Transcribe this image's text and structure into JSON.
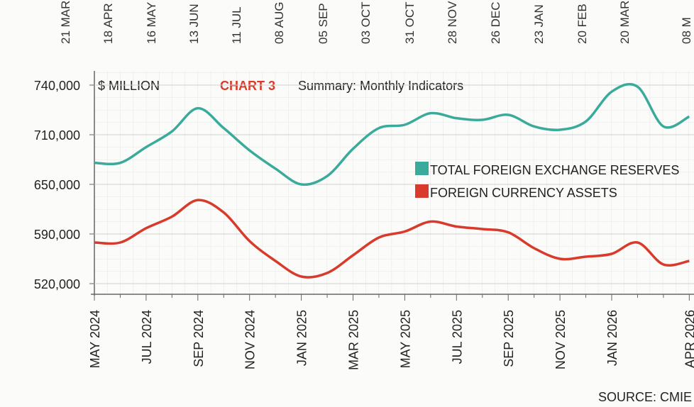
{
  "top_labels": [
    "21 MAR",
    "18 APR",
    "16 MAY",
    "13 JUN",
    "11 JUL",
    "08 AUG",
    "05 SEP",
    "03 OCT",
    "31 OCT",
    "28 NOV",
    "26 DEC",
    "23 JAN",
    "20 FEB",
    "20 MAR",
    "08 M"
  ],
  "chart_data": {
    "type": "line",
    "title_prefix": "CHART 3",
    "title": "Summary: Monthly Indicators",
    "unit_label": "$ MILLION",
    "source": "SOURCE: CMIE",
    "categories": [
      "MAY 2024",
      null,
      "JUL 2024",
      null,
      "SEP 2024",
      null,
      "NOV 2024",
      null,
      "JAN 2025",
      null,
      "MAR 2025",
      null,
      "MAY 2025",
      null,
      "JUL 2025",
      null,
      "SEP 2025",
      null,
      "NOV 2025",
      null,
      "JAN 2026",
      null,
      null,
      "APR 2026"
    ],
    "series": [
      {
        "name": "TOTAL FOREIGN EXCHANGE RESERVES",
        "color": "#3aab9b",
        "values": [
          676000,
          676000,
          695000,
          712000,
          726000,
          714000,
          691000,
          669000,
          650000,
          660000,
          693000,
          714000,
          716000,
          723000,
          720000,
          719000,
          722000,
          715000,
          713000,
          718000,
          736000,
          739000,
          715000,
          721000
        ]
      },
      {
        "name": "FOREIGN CURRENCY ASSETS",
        "color": "#d83a2b",
        "values": [
          578000,
          578000,
          597000,
          611000,
          631000,
          616000,
          580000,
          552000,
          530000,
          535000,
          560000,
          585000,
          593000,
          605000,
          599000,
          596000,
          592000,
          570000,
          555000,
          558000,
          562000,
          578000,
          547000,
          552000
        ]
      }
    ],
    "ylim": [
      520000,
      740000
    ],
    "yticks": [
      {
        "value": 520000,
        "label": "520,000"
      },
      {
        "value": 590000,
        "label": "590,000"
      },
      {
        "value": 650000,
        "label": "650,000"
      },
      {
        "value": 710000,
        "label": "710,000"
      },
      {
        "value": 740000,
        "label": "740,000"
      }
    ],
    "grid": true,
    "legend": "right"
  }
}
